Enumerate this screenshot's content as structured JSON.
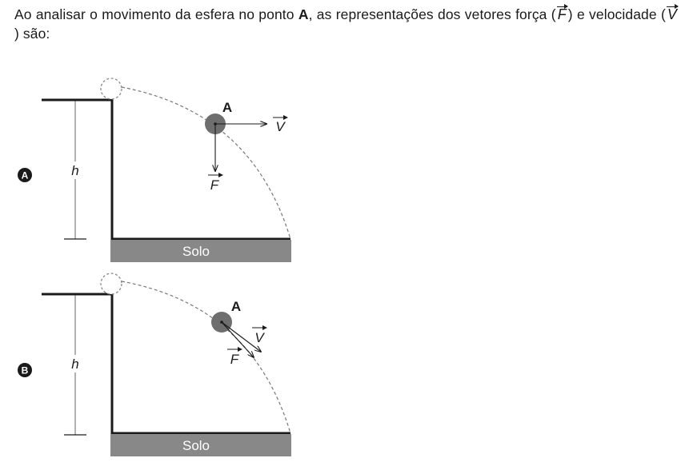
{
  "question": {
    "part1": "Ao analisar o movimento da esfera no ponto ",
    "point_label": "A",
    "part2": ", as representações dos vetores força (",
    "force_symbol": "F",
    "part3": ") e velocidade (",
    "velocity_symbol": "V",
    "part4": ") são:"
  },
  "options": [
    {
      "letter": "A",
      "height_label": "h",
      "ground_label": "Solo",
      "point_label": "A",
      "velocity_label": "V",
      "force_label": "F"
    },
    {
      "letter": "B",
      "height_label": "h",
      "ground_label": "Solo",
      "point_label": "A",
      "velocity_label": "V",
      "force_label": "F"
    }
  ]
}
